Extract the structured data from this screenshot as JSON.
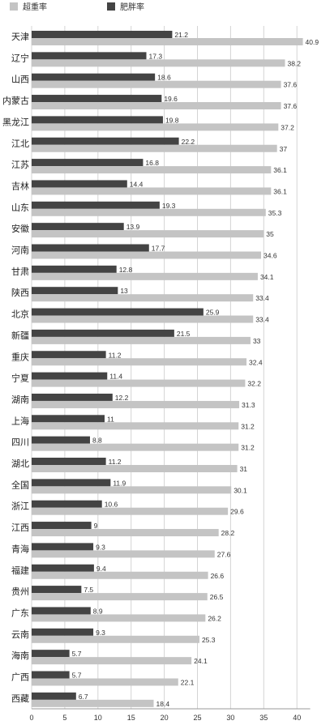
{
  "chart_data": {
    "type": "bar",
    "orientation": "horizontal",
    "legend_position": "top-left",
    "grid": true,
    "xlim": [
      0,
      42
    ],
    "x_ticks": [
      "0",
      "5",
      "10",
      "15",
      "20",
      "25",
      "30",
      "35",
      "40"
    ],
    "categories": [
      "天津",
      "辽宁",
      "山西",
      "内蒙古",
      "黑龙江",
      "江北",
      "江苏",
      "吉林",
      "山东",
      "安徽",
      "河南",
      "甘肃",
      "陕西",
      "北京",
      "新疆",
      "重庆",
      "宁夏",
      "湖南",
      "上海",
      "四川",
      "湖北",
      "全国",
      "浙江",
      "江西",
      "青海",
      "福建",
      "贵州",
      "广东",
      "云南",
      "海南",
      "广西",
      "西藏"
    ],
    "series": [
      {
        "name": "超重率",
        "color": "#c4c4c4",
        "values": [
          40.9,
          38.2,
          37.6,
          37.6,
          37.2,
          37,
          36.1,
          36.1,
          35.3,
          35,
          34.6,
          34.1,
          33.4,
          33.4,
          33,
          32.4,
          32.2,
          31.3,
          31.2,
          31.2,
          31,
          30.1,
          29.6,
          28.2,
          27.6,
          26.6,
          26.5,
          26.2,
          25.3,
          24.1,
          22.1,
          18.4
        ]
      },
      {
        "name": "肥胖率",
        "color": "#444444",
        "values": [
          21.2,
          17.3,
          18.6,
          19.6,
          19.8,
          22.2,
          16.8,
          14.4,
          19.3,
          13.9,
          17.7,
          12.8,
          13,
          25.9,
          21.5,
          11.2,
          11.4,
          12.2,
          11,
          8.8,
          11.2,
          11.9,
          10.6,
          9,
          9.3,
          9.4,
          7.5,
          8.9,
          9.3,
          5.7,
          5.7,
          6.7
        ]
      }
    ]
  }
}
